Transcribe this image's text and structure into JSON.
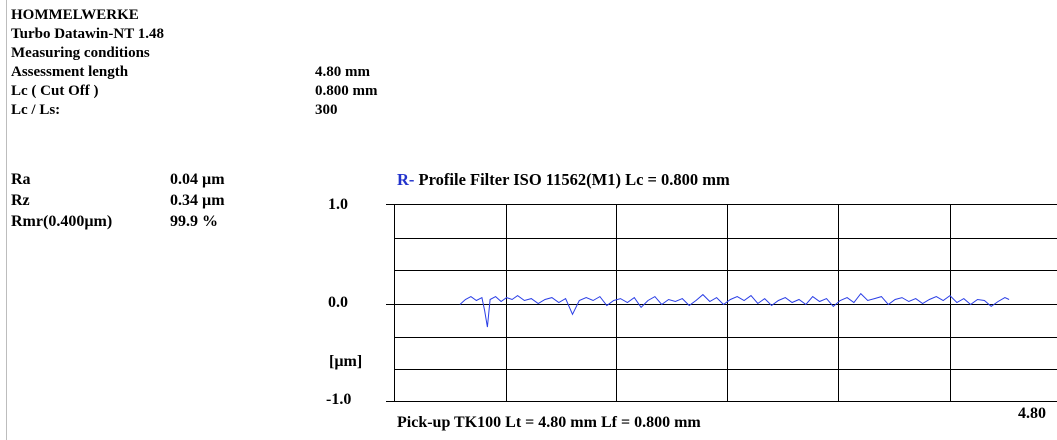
{
  "header": {
    "company": "HOMMELWERKE",
    "software": "Turbo Datawin-NT 1.48",
    "section_title": "Measuring conditions",
    "conditions": [
      {
        "label": "Assessment length",
        "value": "4.80 mm"
      },
      {
        "label": "Lc   ( Cut Off )",
        "value": "0.800 mm"
      },
      {
        "label": "Lc / Ls:",
        "value": "300"
      }
    ]
  },
  "parameters": [
    {
      "name": "Ra",
      "value": "0.04 µm"
    },
    {
      "name": "Rz",
      "value": "0.34 µm"
    },
    {
      "name": "Rmr(0.400µm)",
      "value": "99.9   %"
    }
  ],
  "chart_data": {
    "type": "line",
    "title_prefix": "R-",
    "title": "Profile  Filter  ISO 11562(M1)  Lc = 0.800  mm",
    "ylabel": "[µm]",
    "ytick_labels": [
      "1.0",
      "0.0",
      "-1.0"
    ],
    "ylim": [
      -1.0,
      1.0
    ],
    "xlim": [
      0,
      4.8
    ],
    "x_end_label": "4.80",
    "footer": "Pick-up TK100    Lt = 4.80  mm    Lf = 0.800  mm",
    "grid": true,
    "line_color": "#2a3ee6",
    "series": [
      {
        "x": [
          0.48,
          0.52,
          0.56,
          0.6,
          0.64,
          0.66,
          0.68,
          0.7,
          0.74,
          0.78,
          0.82,
          0.86,
          0.9,
          0.95,
          1.0,
          1.05,
          1.1,
          1.15,
          1.2,
          1.25,
          1.3,
          1.35,
          1.4,
          1.45,
          1.5,
          1.55,
          1.6,
          1.65,
          1.7,
          1.75,
          1.8,
          1.85,
          1.9,
          1.95,
          2.0,
          2.05,
          2.1,
          2.15,
          2.2,
          2.25,
          2.3,
          2.35,
          2.4,
          2.45,
          2.5,
          2.55,
          2.6,
          2.65,
          2.7,
          2.75,
          2.8,
          2.85,
          2.9,
          2.95,
          3.0,
          3.05,
          3.1,
          3.15,
          3.2,
          3.25,
          3.3,
          3.35,
          3.4,
          3.45,
          3.5,
          3.55,
          3.6,
          3.65,
          3.7,
          3.75,
          3.8,
          3.85,
          3.9,
          3.95,
          4.0,
          4.05,
          4.1,
          4.15,
          4.2,
          4.25,
          4.3,
          4.35,
          4.4,
          4.45,
          4.48
        ],
        "y": [
          -0.02,
          0.03,
          0.06,
          0.02,
          0.05,
          -0.08,
          -0.25,
          0.03,
          0.06,
          0.01,
          0.05,
          0.03,
          0.07,
          0.02,
          0.04,
          -0.01,
          0.03,
          0.05,
          0.0,
          0.04,
          -0.12,
          0.02,
          0.05,
          0.02,
          0.06,
          -0.03,
          0.02,
          0.04,
          0.0,
          0.05,
          -0.05,
          0.02,
          0.06,
          -0.02,
          0.03,
          0.01,
          0.04,
          -0.03,
          0.02,
          0.08,
          0.01,
          0.05,
          -0.02,
          0.03,
          0.06,
          0.02,
          0.07,
          -0.01,
          0.04,
          -0.03,
          0.02,
          0.05,
          0.0,
          0.03,
          -0.02,
          0.06,
          0.01,
          0.04,
          -0.04,
          0.02,
          0.05,
          0.0,
          0.09,
          0.02,
          0.04,
          0.06,
          -0.02,
          0.03,
          0.05,
          0.01,
          0.04,
          -0.01,
          0.03,
          0.06,
          0.02,
          0.07,
          0.0,
          0.04,
          -0.02,
          0.03,
          0.02,
          -0.04,
          0.01,
          0.05,
          0.03
        ]
      }
    ]
  }
}
